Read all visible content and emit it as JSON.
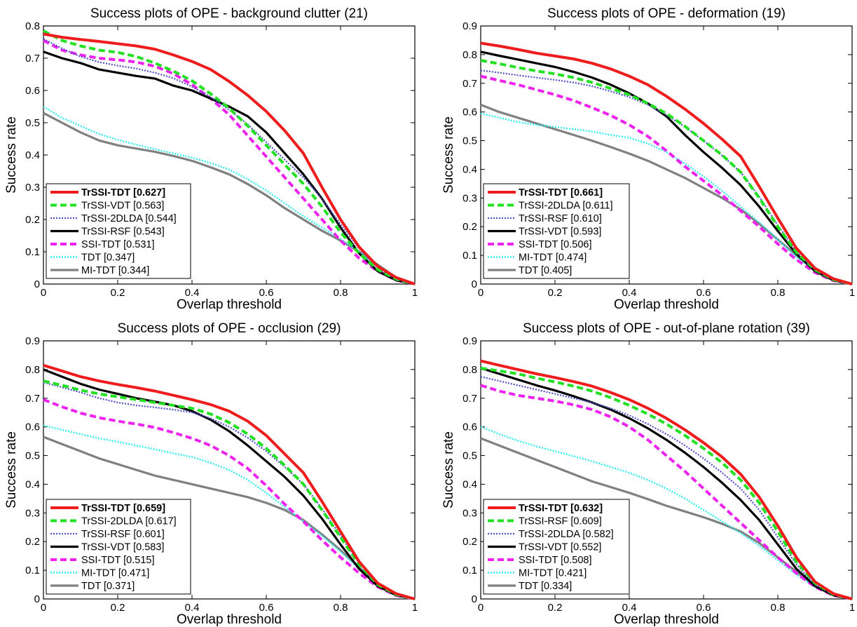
{
  "chart_data": [
    {
      "type": "line",
      "title": "Success plots of OPE - background clutter (21)",
      "xlabel": "Overlap threshold",
      "ylabel": "Success rate",
      "xlim": [
        0,
        1
      ],
      "ylim": [
        0,
        0.8
      ],
      "xticks": [
        "0",
        "0.2",
        "0.4",
        "0.6",
        "0.8",
        "1"
      ],
      "yticks": [
        "0",
        "0.1",
        "0.2",
        "0.3",
        "0.4",
        "0.5",
        "0.6",
        "0.7",
        "0.8"
      ],
      "x": [
        0,
        0.05,
        0.1,
        0.15,
        0.2,
        0.25,
        0.3,
        0.35,
        0.4,
        0.45,
        0.5,
        0.55,
        0.6,
        0.65,
        0.7,
        0.75,
        0.8,
        0.85,
        0.9,
        0.95,
        1.0
      ],
      "legend_position": "bottom-left",
      "series": [
        {
          "name": "TrSSI-TDT [0.627]",
          "style": "solid-red",
          "values": [
            0.775,
            0.765,
            0.758,
            0.752,
            0.745,
            0.738,
            0.728,
            0.71,
            0.69,
            0.665,
            0.628,
            0.585,
            0.535,
            0.475,
            0.405,
            0.3,
            0.2,
            0.115,
            0.055,
            0.02,
            0.0
          ]
        },
        {
          "name": "TrSSI-VDT [0.563]",
          "style": "dashed-green",
          "values": [
            0.785,
            0.755,
            0.738,
            0.725,
            0.718,
            0.705,
            0.685,
            0.66,
            0.63,
            0.59,
            0.545,
            0.49,
            0.43,
            0.37,
            0.31,
            0.24,
            0.16,
            0.095,
            0.045,
            0.015,
            0.0
          ]
        },
        {
          "name": "TrSSI-2DLDA [0.544]",
          "style": "dotted-blue",
          "values": [
            0.76,
            0.73,
            0.705,
            0.688,
            0.677,
            0.668,
            0.655,
            0.638,
            0.612,
            0.58,
            0.54,
            0.495,
            0.44,
            0.385,
            0.33,
            0.265,
            0.185,
            0.11,
            0.05,
            0.015,
            0.0
          ]
        },
        {
          "name": "TrSSI-RSF [0.543]",
          "style": "solid-black",
          "values": [
            0.72,
            0.7,
            0.685,
            0.665,
            0.655,
            0.645,
            0.637,
            0.615,
            0.6,
            0.575,
            0.55,
            0.52,
            0.47,
            0.405,
            0.34,
            0.265,
            0.175,
            0.095,
            0.04,
            0.012,
            0.0
          ]
        },
        {
          "name": "SSI-TDT [0.531]",
          "style": "dashed-magenta",
          "values": [
            0.755,
            0.725,
            0.71,
            0.7,
            0.695,
            0.688,
            0.675,
            0.652,
            0.618,
            0.575,
            0.525,
            0.46,
            0.395,
            0.33,
            0.265,
            0.2,
            0.135,
            0.08,
            0.04,
            0.012,
            0.0
          ]
        },
        {
          "name": "TDT [0.347]",
          "style": "dotted-cyan",
          "values": [
            0.55,
            0.515,
            0.49,
            0.465,
            0.447,
            0.432,
            0.418,
            0.405,
            0.392,
            0.375,
            0.355,
            0.325,
            0.29,
            0.25,
            0.21,
            0.175,
            0.14,
            0.1,
            0.055,
            0.018,
            0.0
          ]
        },
        {
          "name": "MI-TDT [0.344]",
          "style": "solid-gray",
          "values": [
            0.53,
            0.5,
            0.47,
            0.445,
            0.43,
            0.42,
            0.41,
            0.397,
            0.382,
            0.362,
            0.34,
            0.31,
            0.275,
            0.235,
            0.2,
            0.165,
            0.135,
            0.1,
            0.06,
            0.02,
            0.0
          ]
        }
      ]
    },
    {
      "type": "line",
      "title": "Success plots of OPE - deformation (19)",
      "xlabel": "Overlap threshold",
      "ylabel": "Success rate",
      "xlim": [
        0,
        1
      ],
      "ylim": [
        0,
        0.9
      ],
      "xticks": [
        "0",
        "0.2",
        "0.4",
        "0.6",
        "0.8",
        "1"
      ],
      "yticks": [
        "0",
        "0.1",
        "0.2",
        "0.3",
        "0.4",
        "0.5",
        "0.6",
        "0.7",
        "0.8",
        "0.9"
      ],
      "x": [
        0,
        0.05,
        0.1,
        0.15,
        0.2,
        0.25,
        0.3,
        0.35,
        0.4,
        0.45,
        0.5,
        0.55,
        0.6,
        0.65,
        0.7,
        0.75,
        0.8,
        0.85,
        0.9,
        0.95,
        1.0
      ],
      "legend_position": "bottom-left",
      "series": [
        {
          "name": "TrSSI-TDT [0.661]",
          "style": "solid-red",
          "values": [
            0.84,
            0.83,
            0.818,
            0.805,
            0.795,
            0.785,
            0.77,
            0.75,
            0.725,
            0.695,
            0.655,
            0.61,
            0.56,
            0.505,
            0.445,
            0.34,
            0.23,
            0.125,
            0.055,
            0.018,
            0.0
          ]
        },
        {
          "name": "TrSSI-2DLDA [0.611]",
          "style": "dashed-green",
          "values": [
            0.78,
            0.768,
            0.755,
            0.743,
            0.733,
            0.72,
            0.703,
            0.682,
            0.66,
            0.63,
            0.595,
            0.55,
            0.5,
            0.45,
            0.39,
            0.3,
            0.2,
            0.11,
            0.05,
            0.015,
            0.0
          ]
        },
        {
          "name": "TrSSI-RSF [0.610]",
          "style": "dotted-blue",
          "values": [
            0.745,
            0.737,
            0.728,
            0.72,
            0.712,
            0.703,
            0.69,
            0.672,
            0.652,
            0.625,
            0.59,
            0.548,
            0.5,
            0.448,
            0.39,
            0.305,
            0.205,
            0.115,
            0.05,
            0.015,
            0.0
          ]
        },
        {
          "name": "TrSSI-VDT [0.593]",
          "style": "solid-black",
          "values": [
            0.81,
            0.796,
            0.783,
            0.77,
            0.757,
            0.74,
            0.72,
            0.695,
            0.665,
            0.63,
            0.585,
            0.52,
            0.46,
            0.405,
            0.345,
            0.27,
            0.185,
            0.105,
            0.045,
            0.013,
            0.0
          ]
        },
        {
          "name": "SSI-TDT [0.506]",
          "style": "dashed-magenta",
          "values": [
            0.725,
            0.71,
            0.695,
            0.678,
            0.66,
            0.64,
            0.615,
            0.588,
            0.555,
            0.515,
            0.465,
            0.41,
            0.36,
            0.31,
            0.255,
            0.2,
            0.14,
            0.085,
            0.04,
            0.012,
            0.0
          ]
        },
        {
          "name": "MI-TDT [0.474]",
          "style": "dotted-cyan",
          "values": [
            0.595,
            0.58,
            0.565,
            0.555,
            0.548,
            0.54,
            0.532,
            0.52,
            0.51,
            0.49,
            0.46,
            0.42,
            0.375,
            0.325,
            0.27,
            0.215,
            0.155,
            0.095,
            0.045,
            0.013,
            0.0
          ]
        },
        {
          "name": "TDT [0.405]",
          "style": "solid-gray",
          "values": [
            0.625,
            0.6,
            0.58,
            0.56,
            0.54,
            0.52,
            0.5,
            0.478,
            0.455,
            0.43,
            0.4,
            0.37,
            0.335,
            0.3,
            0.26,
            0.21,
            0.155,
            0.1,
            0.05,
            0.015,
            0.0
          ]
        }
      ]
    },
    {
      "type": "line",
      "title": "Success plots of OPE - occlusion (29)",
      "xlabel": "Overlap threshold",
      "ylabel": "Success rate",
      "xlim": [
        0,
        1
      ],
      "ylim": [
        0,
        0.9
      ],
      "xticks": [
        "0",
        "0.2",
        "0.4",
        "0.6",
        "0.8",
        "1"
      ],
      "yticks": [
        "0",
        "0.1",
        "0.2",
        "0.3",
        "0.4",
        "0.5",
        "0.6",
        "0.7",
        "0.8",
        "0.9"
      ],
      "x": [
        0,
        0.05,
        0.1,
        0.15,
        0.2,
        0.25,
        0.3,
        0.35,
        0.4,
        0.45,
        0.5,
        0.55,
        0.6,
        0.65,
        0.7,
        0.75,
        0.8,
        0.85,
        0.9,
        0.95,
        1.0
      ],
      "legend_position": "bottom-left",
      "series": [
        {
          "name": "TrSSI-TDT [0.659]",
          "style": "solid-red",
          "values": [
            0.815,
            0.795,
            0.775,
            0.76,
            0.748,
            0.737,
            0.725,
            0.71,
            0.695,
            0.678,
            0.655,
            0.62,
            0.57,
            0.505,
            0.44,
            0.34,
            0.235,
            0.13,
            0.055,
            0.018,
            0.0
          ]
        },
        {
          "name": "TrSSI-2DLDA [0.617]",
          "style": "dashed-green",
          "values": [
            0.76,
            0.745,
            0.728,
            0.715,
            0.705,
            0.695,
            0.685,
            0.675,
            0.665,
            0.645,
            0.615,
            0.575,
            0.525,
            0.465,
            0.4,
            0.31,
            0.215,
            0.12,
            0.05,
            0.015,
            0.0
          ]
        },
        {
          "name": "TrSSI-RSF [0.601]",
          "style": "dotted-blue",
          "values": [
            0.755,
            0.738,
            0.72,
            0.7,
            0.685,
            0.675,
            0.668,
            0.66,
            0.65,
            0.63,
            0.6,
            0.562,
            0.515,
            0.46,
            0.4,
            0.315,
            0.22,
            0.125,
            0.055,
            0.016,
            0.0
          ]
        },
        {
          "name": "TrSSI-VDT [0.583]",
          "style": "solid-black",
          "values": [
            0.8,
            0.775,
            0.75,
            0.73,
            0.715,
            0.7,
            0.688,
            0.675,
            0.655,
            0.625,
            0.585,
            0.535,
            0.48,
            0.425,
            0.36,
            0.28,
            0.19,
            0.105,
            0.045,
            0.013,
            0.0
          ]
        },
        {
          "name": "SSI-TDT [0.515]",
          "style": "dashed-magenta",
          "values": [
            0.695,
            0.67,
            0.648,
            0.632,
            0.62,
            0.61,
            0.598,
            0.58,
            0.56,
            0.535,
            0.5,
            0.455,
            0.395,
            0.33,
            0.27,
            0.205,
            0.145,
            0.09,
            0.042,
            0.012,
            0.0
          ]
        },
        {
          "name": "MI-TDT [0.471]",
          "style": "dotted-cyan",
          "values": [
            0.605,
            0.59,
            0.575,
            0.56,
            0.548,
            0.535,
            0.522,
            0.508,
            0.495,
            0.475,
            0.45,
            0.415,
            0.37,
            0.32,
            0.27,
            0.22,
            0.165,
            0.105,
            0.05,
            0.015,
            0.0
          ]
        },
        {
          "name": "TDT [0.371]",
          "style": "solid-gray",
          "values": [
            0.565,
            0.54,
            0.515,
            0.49,
            0.47,
            0.45,
            0.43,
            0.415,
            0.4,
            0.385,
            0.37,
            0.355,
            0.335,
            0.31,
            0.275,
            0.225,
            0.17,
            0.11,
            0.055,
            0.017,
            0.0
          ]
        }
      ]
    },
    {
      "type": "line",
      "title": "Success plots of OPE - out-of-plane rotation (39)",
      "xlabel": "Overlap threshold",
      "ylabel": "Success rate",
      "xlim": [
        0,
        1
      ],
      "ylim": [
        0,
        0.9
      ],
      "xticks": [
        "0",
        "0.2",
        "0.4",
        "0.6",
        "0.8",
        "1"
      ],
      "yticks": [
        "0",
        "0.1",
        "0.2",
        "0.3",
        "0.4",
        "0.5",
        "0.6",
        "0.7",
        "0.8",
        "0.9"
      ],
      "x": [
        0,
        0.05,
        0.1,
        0.15,
        0.2,
        0.25,
        0.3,
        0.35,
        0.4,
        0.45,
        0.5,
        0.55,
        0.6,
        0.65,
        0.7,
        0.75,
        0.8,
        0.85,
        0.9,
        0.95,
        1.0
      ],
      "legend_position": "bottom-left",
      "series": [
        {
          "name": "TrSSI-TDT [0.632]",
          "style": "solid-red",
          "values": [
            0.83,
            0.815,
            0.8,
            0.785,
            0.772,
            0.758,
            0.742,
            0.72,
            0.695,
            0.665,
            0.63,
            0.59,
            0.545,
            0.495,
            0.435,
            0.355,
            0.255,
            0.145,
            0.06,
            0.018,
            0.0
          ]
        },
        {
          "name": "TrSSI-RSF [0.609]",
          "style": "dashed-green",
          "values": [
            0.805,
            0.795,
            0.785,
            0.77,
            0.757,
            0.742,
            0.725,
            0.702,
            0.675,
            0.645,
            0.61,
            0.57,
            0.525,
            0.475,
            0.415,
            0.335,
            0.235,
            0.13,
            0.055,
            0.016,
            0.0
          ]
        },
        {
          "name": "TrSSI-2DLDA [0.582]",
          "style": "dotted-blue",
          "values": [
            0.775,
            0.76,
            0.745,
            0.73,
            0.715,
            0.7,
            0.685,
            0.665,
            0.64,
            0.61,
            0.575,
            0.535,
            0.49,
            0.44,
            0.385,
            0.31,
            0.215,
            0.12,
            0.05,
            0.015,
            0.0
          ]
        },
        {
          "name": "TrSSI-VDT [0.552]",
          "style": "solid-black",
          "values": [
            0.805,
            0.785,
            0.765,
            0.745,
            0.727,
            0.707,
            0.685,
            0.66,
            0.63,
            0.595,
            0.555,
            0.51,
            0.46,
            0.405,
            0.345,
            0.275,
            0.19,
            0.105,
            0.045,
            0.013,
            0.0
          ]
        },
        {
          "name": "SSI-TDT [0.508]",
          "style": "dashed-magenta",
          "values": [
            0.745,
            0.725,
            0.71,
            0.7,
            0.69,
            0.677,
            0.66,
            0.635,
            0.6,
            0.555,
            0.5,
            0.445,
            0.385,
            0.325,
            0.265,
            0.205,
            0.145,
            0.09,
            0.042,
            0.012,
            0.0
          ]
        },
        {
          "name": "MI-TDT [0.421]",
          "style": "dotted-cyan",
          "values": [
            0.6,
            0.575,
            0.552,
            0.532,
            0.515,
            0.498,
            0.48,
            0.46,
            0.44,
            0.415,
            0.385,
            0.35,
            0.31,
            0.27,
            0.23,
            0.185,
            0.135,
            0.085,
            0.04,
            0.012,
            0.0
          ]
        },
        {
          "name": "TDT [0.334]",
          "style": "solid-gray",
          "values": [
            0.56,
            0.535,
            0.51,
            0.485,
            0.46,
            0.435,
            0.41,
            0.39,
            0.37,
            0.348,
            0.325,
            0.305,
            0.285,
            0.262,
            0.235,
            0.195,
            0.145,
            0.095,
            0.045,
            0.013,
            0.0
          ]
        }
      ]
    }
  ],
  "colors": {
    "solid-red": "#ee1c1c",
    "dashed-green": "#22e022",
    "dotted-blue": "#5050c8",
    "solid-black": "#000000",
    "dashed-magenta": "#ee22ee",
    "dotted-cyan": "#30ecec",
    "solid-gray": "#808080"
  }
}
